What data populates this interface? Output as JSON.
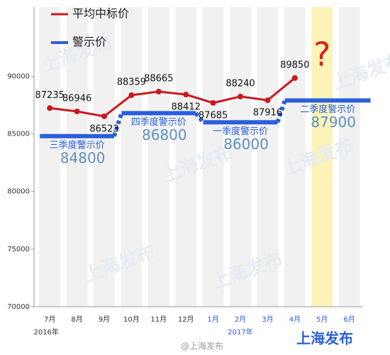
{
  "chart_data": {
    "type": "line",
    "categories": [
      "7月",
      "8月",
      "9月",
      "10月",
      "11月",
      "12月",
      "1月",
      "2月",
      "3月",
      "4月",
      "5月",
      "6月"
    ],
    "years": [
      "2016年",
      "2017年"
    ],
    "series": [
      {
        "name": "平均中标价",
        "color": "#c8191e",
        "values": [
          87235,
          86946,
          86523,
          88359,
          88665,
          88412,
          87685,
          88240,
          87916,
          89850,
          null,
          null
        ]
      }
    ],
    "warning": {
      "name": "警示价",
      "color": "#2a5fdc",
      "quarters": [
        {
          "label": "三季度警示价",
          "value": 84800
        },
        {
          "label": "四季度警示价",
          "value": 86800
        },
        {
          "label": "一季度警示价",
          "value": 86000
        },
        {
          "label": "二季度警示价",
          "value": 87900
        }
      ]
    },
    "ylim": [
      70000,
      96000
    ],
    "yticks": [
      70000,
      75000,
      80000,
      85000,
      90000
    ],
    "highlight_index": 10,
    "annotation": "?",
    "watermark": "上海发布",
    "credit": "@上海发布"
  }
}
